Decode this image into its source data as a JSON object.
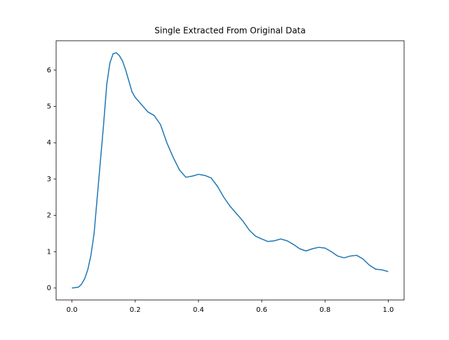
{
  "chart_data": {
    "type": "line",
    "title": "Single Extracted From Original Data",
    "x": [
      0,
      0.02,
      0.03,
      0.04,
      0.05,
      0.06,
      0.07,
      0.08,
      0.09,
      0.1,
      0.11,
      0.12,
      0.13,
      0.14,
      0.15,
      0.16,
      0.17,
      0.18,
      0.19,
      0.2,
      0.22,
      0.24,
      0.26,
      0.28,
      0.3,
      0.32,
      0.34,
      0.36,
      0.38,
      0.4,
      0.42,
      0.44,
      0.46,
      0.48,
      0.5,
      0.52,
      0.54,
      0.56,
      0.58,
      0.6,
      0.62,
      0.64,
      0.66,
      0.68,
      0.7,
      0.72,
      0.74,
      0.76,
      0.78,
      0.8,
      0.82,
      0.84,
      0.86,
      0.88,
      0.9,
      0.92,
      0.94,
      0.96,
      0.98,
      1.0
    ],
    "series": [
      {
        "color": "#1f77b4",
        "values": [
          0,
          0.02,
          0.1,
          0.25,
          0.5,
          0.9,
          1.5,
          2.5,
          3.5,
          4.5,
          5.6,
          6.2,
          6.45,
          6.48,
          6.4,
          6.25,
          6.0,
          5.7,
          5.4,
          5.25,
          5.05,
          4.85,
          4.75,
          4.5,
          4.0,
          3.6,
          3.25,
          3.05,
          3.08,
          3.13,
          3.1,
          3.03,
          2.8,
          2.5,
          2.25,
          2.05,
          1.85,
          1.6,
          1.43,
          1.35,
          1.28,
          1.3,
          1.35,
          1.3,
          1.2,
          1.08,
          1.02,
          1.08,
          1.12,
          1.1,
          1.0,
          0.88,
          0.83,
          0.88,
          0.9,
          0.8,
          0.63,
          0.52,
          0.5,
          0.45
        ]
      }
    ],
    "xlim": [
      -0.05,
      1.05
    ],
    "xticks": [
      {
        "value": 0,
        "label": "0.0"
      },
      0.2,
      0.4,
      0.6,
      0.8,
      {
        "value": 1,
        "label": "1.0"
      }
    ],
    "ylim": [
      -0.33,
      6.81
    ],
    "yticks": [
      0,
      1,
      2,
      3,
      4,
      5,
      6
    ]
  }
}
